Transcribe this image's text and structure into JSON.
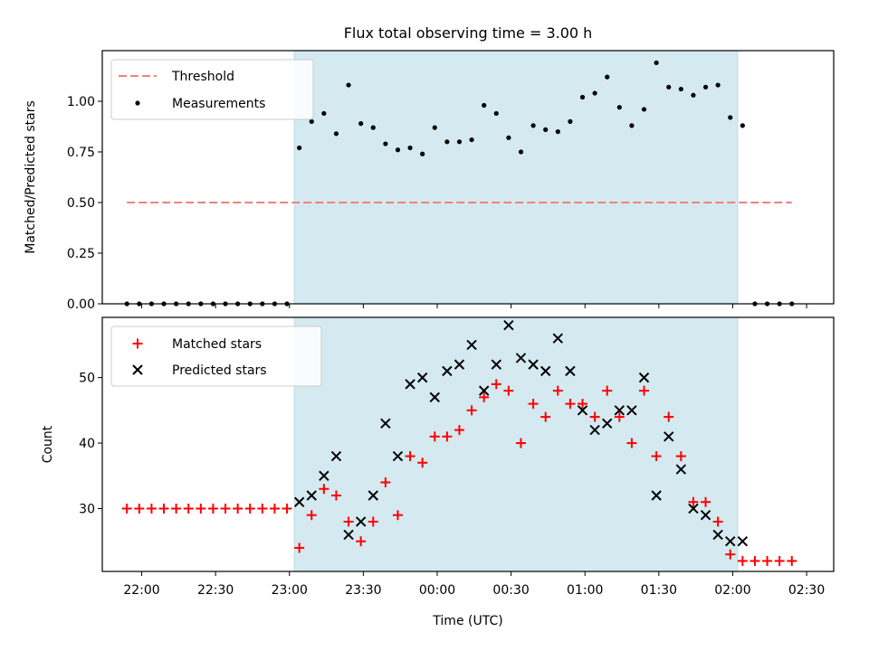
{
  "chart_data": [
    {
      "type": "scatter",
      "title": "Flux total observing time = 3.00 h",
      "xlabel": "",
      "ylabel": "Matched/Predicted stars",
      "ylim": [
        0,
        1.25
      ],
      "yticks": [
        "0.00",
        "0.25",
        "0.50",
        "0.75",
        "1.00"
      ],
      "ytick_values": [
        0,
        0.25,
        0.5,
        0.75,
        1.0
      ],
      "shaded_span": [
        "23:02",
        "02:02"
      ],
      "shade_color": "#d4eaf0",
      "threshold": {
        "name": "Threshold",
        "value": 0.5,
        "x_range": [
          "21:54",
          "02:24"
        ],
        "color": "#f08080"
      },
      "measurements": {
        "name": "Measurements",
        "color": "#000000",
        "x": [
          "21:54",
          "21:59",
          "22:04",
          "22:09",
          "22:14",
          "22:19",
          "22:24",
          "22:29",
          "22:34",
          "22:39",
          "22:44",
          "22:49",
          "22:54",
          "22:59",
          "23:04",
          "23:09",
          "23:14",
          "23:19",
          "23:24",
          "23:29",
          "23:34",
          "23:39",
          "23:44",
          "23:49",
          "23:54",
          "23:59",
          "00:04",
          "00:09",
          "00:14",
          "00:19",
          "00:24",
          "00:29",
          "00:34",
          "00:39",
          "00:44",
          "00:49",
          "00:54",
          "00:59",
          "01:04",
          "01:09",
          "01:14",
          "01:19",
          "01:24",
          "01:29",
          "01:34",
          "01:39",
          "01:44",
          "01:49",
          "01:54",
          "01:59",
          "02:04",
          "02:09",
          "02:14",
          "02:19",
          "02:24"
        ],
        "y": [
          0,
          0,
          0,
          0,
          0,
          0,
          0,
          0,
          0,
          0,
          0,
          0,
          0,
          0,
          0.77,
          0.9,
          0.94,
          0.84,
          1.08,
          0.89,
          0.87,
          0.79,
          0.76,
          0.77,
          0.74,
          0.87,
          0.8,
          0.8,
          0.81,
          0.98,
          0.94,
          0.82,
          0.75,
          0.88,
          0.86,
          0.85,
          0.9,
          1.02,
          1.04,
          1.12,
          0.97,
          0.88,
          0.96,
          1.19,
          1.07,
          1.06,
          1.03,
          1.07,
          1.08,
          0.92,
          0.88,
          0,
          0,
          0,
          0
        ]
      },
      "legend": [
        "Threshold",
        "Measurements"
      ],
      "legend_loc": "upper left"
    },
    {
      "type": "scatter",
      "title": "",
      "xlabel": "Time (UTC)",
      "ylabel": "Count",
      "ylim": [
        20.4,
        59.2
      ],
      "yticks": [
        "30",
        "40",
        "50"
      ],
      "ytick_values": [
        30,
        40,
        50
      ],
      "xticks": [
        "22:00",
        "22:30",
        "23:00",
        "23:30",
        "00:00",
        "00:30",
        "01:00",
        "01:30",
        "02:00",
        "02:30"
      ],
      "shaded_span": [
        "23:02",
        "02:02"
      ],
      "shade_color": "#d4eaf0",
      "series": [
        {
          "name": "Matched stars",
          "marker": "plus",
          "color": "#ff0000",
          "x": [
            "21:54",
            "21:59",
            "22:04",
            "22:09",
            "22:14",
            "22:19",
            "22:24",
            "22:29",
            "22:34",
            "22:39",
            "22:44",
            "22:49",
            "22:54",
            "22:59",
            "23:04",
            "23:09",
            "23:14",
            "23:19",
            "23:24",
            "23:29",
            "23:34",
            "23:39",
            "23:44",
            "23:49",
            "23:54",
            "23:59",
            "00:04",
            "00:09",
            "00:14",
            "00:19",
            "00:24",
            "00:29",
            "00:34",
            "00:39",
            "00:44",
            "00:49",
            "00:54",
            "00:59",
            "01:04",
            "01:09",
            "01:14",
            "01:19",
            "01:24",
            "01:29",
            "01:34",
            "01:39",
            "01:44",
            "01:49",
            "01:54",
            "01:59",
            "02:04",
            "02:09",
            "02:14",
            "02:19",
            "02:24"
          ],
          "y": [
            30,
            30,
            30,
            30,
            30,
            30,
            30,
            30,
            30,
            30,
            30,
            30,
            30,
            30,
            24,
            29,
            33,
            32,
            28,
            25,
            28,
            34,
            29,
            38,
            37,
            41,
            41,
            42,
            45,
            47,
            49,
            48,
            40,
            46,
            44,
            48,
            46,
            46,
            44,
            48,
            44,
            40,
            48,
            38,
            44,
            38,
            31,
            31,
            28,
            23,
            22,
            22,
            22,
            22,
            22
          ]
        },
        {
          "name": "Predicted stars",
          "marker": "x",
          "color": "#000000",
          "x": [
            "23:04",
            "23:09",
            "23:14",
            "23:19",
            "23:24",
            "23:29",
            "23:34",
            "23:39",
            "23:44",
            "23:49",
            "23:54",
            "23:59",
            "00:04",
            "00:09",
            "00:14",
            "00:19",
            "00:24",
            "00:29",
            "00:34",
            "00:39",
            "00:44",
            "00:49",
            "00:54",
            "00:59",
            "01:04",
            "01:09",
            "01:14",
            "01:19",
            "01:24",
            "01:29",
            "01:34",
            "01:39",
            "01:44",
            "01:49",
            "01:54",
            "01:59",
            "02:04"
          ],
          "y": [
            31,
            32,
            35,
            38,
            26,
            28,
            32,
            43,
            38,
            49,
            50,
            47,
            51,
            52,
            55,
            48,
            52,
            58,
            53,
            52,
            51,
            56,
            51,
            45,
            42,
            43,
            45,
            45,
            50,
            32,
            41,
            36,
            30,
            29,
            26,
            25,
            25
          ]
        }
      ],
      "legend": [
        "Matched stars",
        "Predicted stars"
      ],
      "legend_loc": "upper left"
    }
  ]
}
